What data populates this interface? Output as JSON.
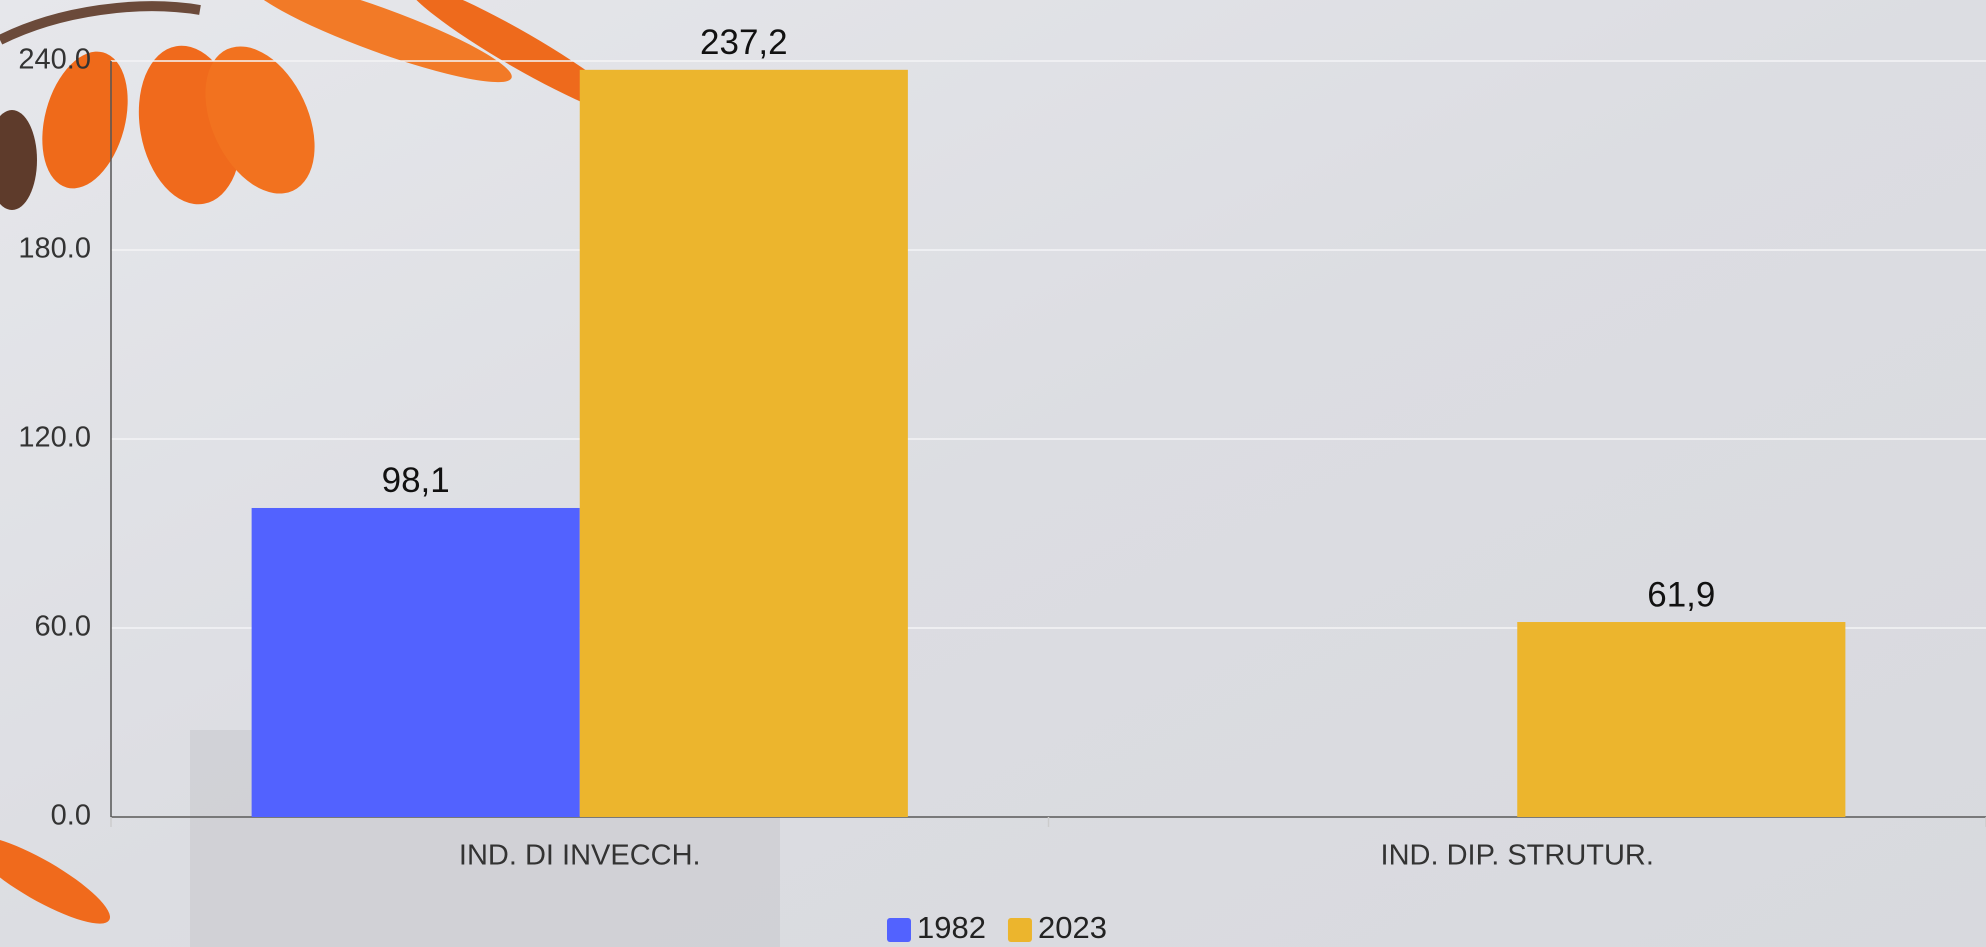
{
  "chart_data": {
    "type": "bar",
    "categories": [
      "IND. DI INVECCH.",
      "IND. DIP. STRUTUR."
    ],
    "series": [
      {
        "name": "1982",
        "color": "#5262ff",
        "values": [
          98.1,
          null
        ],
        "value_labels": [
          "98,1",
          null
        ]
      },
      {
        "name": "2023",
        "color": "#ecb52d",
        "values": [
          237.2,
          61.9
        ],
        "value_labels": [
          "237,2",
          "61,9"
        ]
      }
    ],
    "ylim": [
      0,
      240
    ],
    "yticks": [
      {
        "value": 0,
        "label": "0.0"
      },
      {
        "value": 60,
        "label": "60.0"
      },
      {
        "value": 120,
        "label": "120.0"
      },
      {
        "value": 180,
        "label": "180.0"
      },
      {
        "value": 240,
        "label": "240.0"
      }
    ],
    "grid": true,
    "legend": "bottom"
  }
}
